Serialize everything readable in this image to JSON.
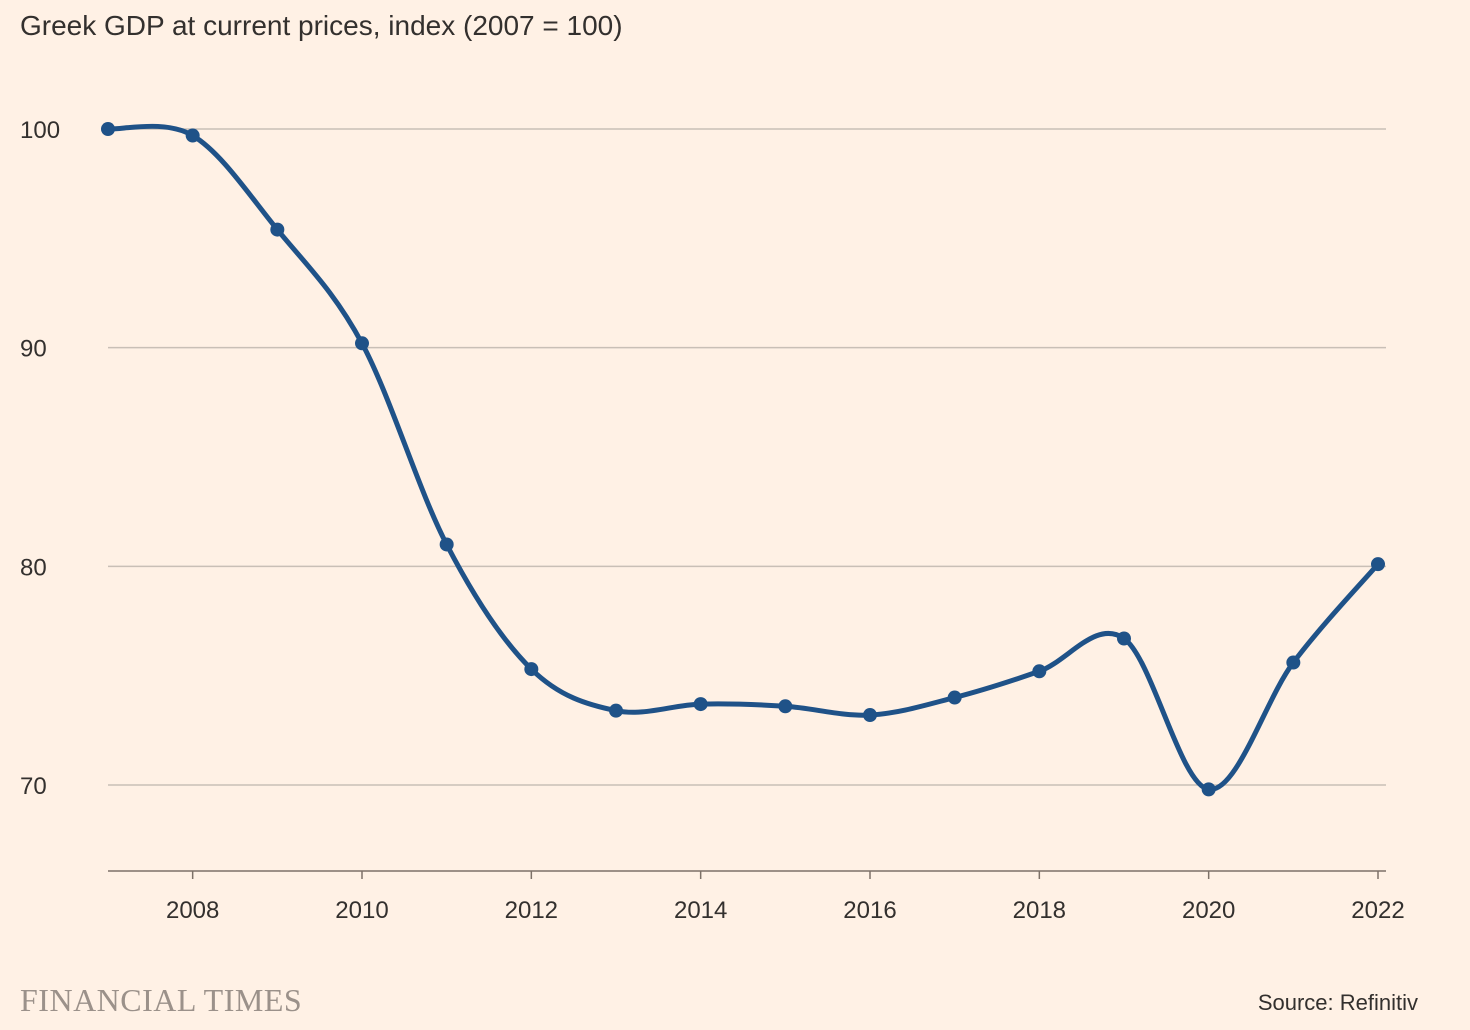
{
  "title": "Greek GDP at current prices, index (2007 = 100)",
  "source": "Source: Refinitiv",
  "brand": "FINANCIAL TIMES",
  "colors": {
    "background": "#fff1e5",
    "line": "#1f5288",
    "grid": "#c9bfb6",
    "axis": "#7d7168",
    "text": "#33302e",
    "brand": "#9b918a"
  },
  "chart_data": {
    "type": "line",
    "title": "Greek GDP at current prices, index (2007 = 100)",
    "xlabel": "",
    "ylabel": "",
    "x": [
      2007,
      2008,
      2009,
      2010,
      2011,
      2012,
      2013,
      2014,
      2015,
      2016,
      2017,
      2018,
      2019,
      2020,
      2021,
      2022
    ],
    "series": [
      {
        "values": [
          100.0,
          99.7,
          95.4,
          90.2,
          81.0,
          75.3,
          73.4,
          73.7,
          73.6,
          73.2,
          74.0,
          75.2,
          76.7,
          69.8,
          75.6,
          80.1
        ]
      }
    ],
    "xlim": [
      2007,
      2022
    ],
    "ylim": [
      66,
      102
    ],
    "yticks": [
      70,
      80,
      90,
      100
    ],
    "xticks": [
      2008,
      2010,
      2012,
      2014,
      2016,
      2018,
      2020,
      2022
    ],
    "grid": true,
    "legend": "none",
    "markers": true,
    "smooth": true
  }
}
